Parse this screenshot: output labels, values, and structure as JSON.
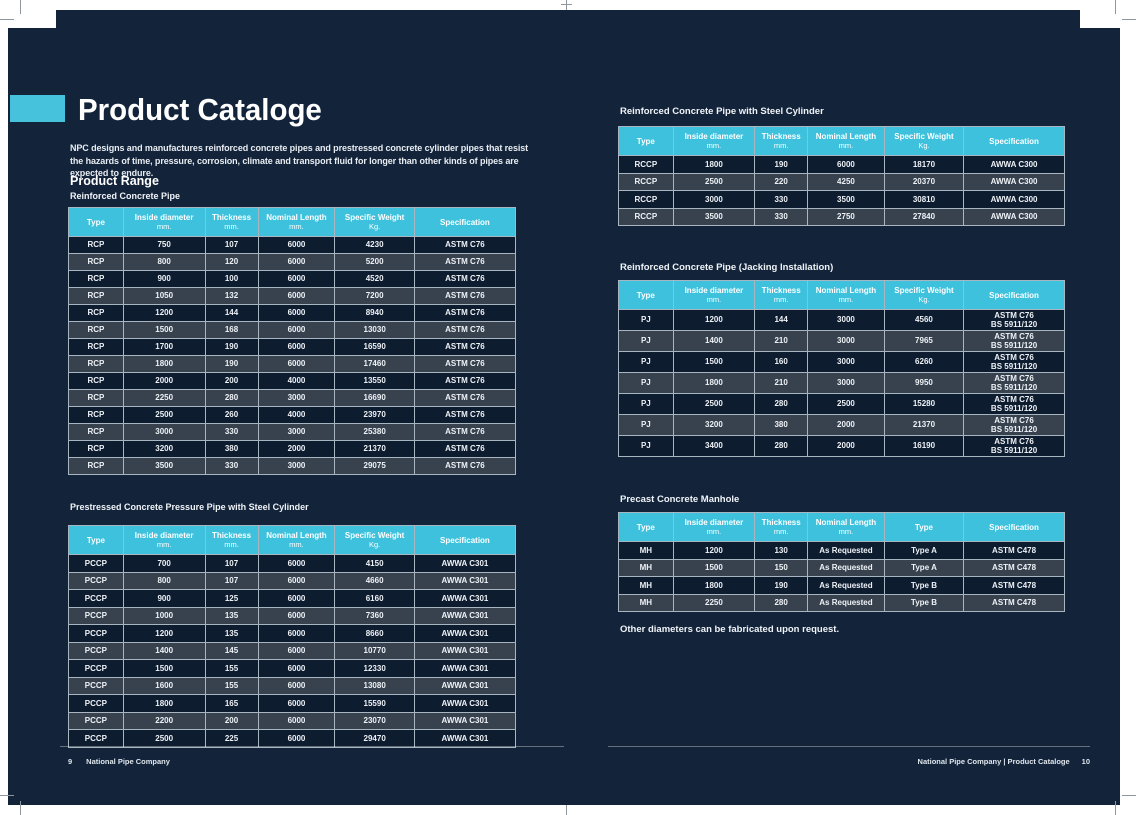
{
  "page": {
    "title": "Product Cataloge",
    "intro": "NPC designs and manufactures reinforced concrete pipes and prestressed concrete cylinder pipes that resist the hazards of time, pressure, corrosion, climate and transport fluid for longer than other kinds of pipes are expected to endure.",
    "section_heading": "Product Range",
    "note": "Other diameters can be fabricated upon request.",
    "colors": {
      "page_background": "#13233a",
      "accent_cyan": "#47c2dd",
      "table_header_cyan": "#3ec1dc",
      "row_dark": "#0e1c30",
      "row_light": "#38424f",
      "text_white": "#ffffff"
    }
  },
  "tables": [
    {
      "heading": "Reinforced Concrete Pipe",
      "columns": [
        {
          "label": "Type",
          "unit": ""
        },
        {
          "label": "Inside diameter",
          "unit": "mm."
        },
        {
          "label": "Thickness",
          "unit": "mm."
        },
        {
          "label": "Nominal Length",
          "unit": "mm."
        },
        {
          "label": "Specific Weight",
          "unit": "Kg."
        },
        {
          "label": "Specification",
          "unit": ""
        }
      ],
      "rows": [
        [
          "RCP",
          "750",
          "107",
          "6000",
          "4230",
          "ASTM C76"
        ],
        [
          "RCP",
          "800",
          "120",
          "6000",
          "5200",
          "ASTM C76"
        ],
        [
          "RCP",
          "900",
          "100",
          "6000",
          "4520",
          "ASTM C76"
        ],
        [
          "RCP",
          "1050",
          "132",
          "6000",
          "7200",
          "ASTM C76"
        ],
        [
          "RCP",
          "1200",
          "144",
          "6000",
          "8940",
          "ASTM C76"
        ],
        [
          "RCP",
          "1500",
          "168",
          "6000",
          "13030",
          "ASTM C76"
        ],
        [
          "RCP",
          "1700",
          "190",
          "6000",
          "16590",
          "ASTM C76"
        ],
        [
          "RCP",
          "1800",
          "190",
          "6000",
          "17460",
          "ASTM C76"
        ],
        [
          "RCP",
          "2000",
          "200",
          "4000",
          "13550",
          "ASTM C76"
        ],
        [
          "RCP",
          "2250",
          "280",
          "3000",
          "16690",
          "ASTM C76"
        ],
        [
          "RCP",
          "2500",
          "260",
          "4000",
          "23970",
          "ASTM C76"
        ],
        [
          "RCP",
          "3000",
          "330",
          "3000",
          "25380",
          "ASTM C76"
        ],
        [
          "RCP",
          "3200",
          "380",
          "2000",
          "21370",
          "ASTM C76"
        ],
        [
          "RCP",
          "3500",
          "330",
          "3000",
          "29075",
          "ASTM C76"
        ]
      ]
    },
    {
      "heading": "Prestressed Concrete Pressure Pipe with Steel Cylinder",
      "columns": [
        {
          "label": "Type",
          "unit": ""
        },
        {
          "label": "Inside diameter",
          "unit": "mm."
        },
        {
          "label": "Thickness",
          "unit": "mm."
        },
        {
          "label": "Nominal Length",
          "unit": "mm."
        },
        {
          "label": "Specific Weight",
          "unit": "Kg."
        },
        {
          "label": "Specification",
          "unit": ""
        }
      ],
      "rows": [
        [
          "PCCP",
          "700",
          "107",
          "6000",
          "4150",
          "AWWA C301"
        ],
        [
          "PCCP",
          "800",
          "107",
          "6000",
          "4660",
          "AWWA C301"
        ],
        [
          "PCCP",
          "900",
          "125",
          "6000",
          "6160",
          "AWWA C301"
        ],
        [
          "PCCP",
          "1000",
          "135",
          "6000",
          "7360",
          "AWWA C301"
        ],
        [
          "PCCP",
          "1200",
          "135",
          "6000",
          "8660",
          "AWWA C301"
        ],
        [
          "PCCP",
          "1400",
          "145",
          "6000",
          "10770",
          "AWWA C301"
        ],
        [
          "PCCP",
          "1500",
          "155",
          "6000",
          "12330",
          "AWWA C301"
        ],
        [
          "PCCP",
          "1600",
          "155",
          "6000",
          "13080",
          "AWWA C301"
        ],
        [
          "PCCP",
          "1800",
          "165",
          "6000",
          "15590",
          "AWWA C301"
        ],
        [
          "PCCP",
          "2200",
          "200",
          "6000",
          "23070",
          "AWWA C301"
        ],
        [
          "PCCP",
          "2500",
          "225",
          "6000",
          "29470",
          "AWWA C301"
        ]
      ]
    },
    {
      "heading": "Reinforced Concrete Pipe with Steel Cylinder",
      "columns": [
        {
          "label": "Type",
          "unit": ""
        },
        {
          "label": "Inside diameter",
          "unit": "mm."
        },
        {
          "label": "Thickness",
          "unit": "mm."
        },
        {
          "label": "Nominal Length",
          "unit": "mm."
        },
        {
          "label": "Specific Weight",
          "unit": "Kg."
        },
        {
          "label": "Specification",
          "unit": ""
        }
      ],
      "rows": [
        [
          "RCCP",
          "1800",
          "190",
          "6000",
          "18170",
          "AWWA C300"
        ],
        [
          "RCCP",
          "2500",
          "220",
          "4250",
          "20370",
          "AWWA C300"
        ],
        [
          "RCCP",
          "3000",
          "330",
          "3500",
          "30810",
          "AWWA C300"
        ],
        [
          "RCCP",
          "3500",
          "330",
          "2750",
          "27840",
          "AWWA C300"
        ]
      ]
    },
    {
      "heading": "Reinforced Concrete Pipe (Jacking Installation)",
      "columns": [
        {
          "label": "Type",
          "unit": ""
        },
        {
          "label": "Inside diameter",
          "unit": "mm."
        },
        {
          "label": "Thickness",
          "unit": "mm."
        },
        {
          "label": "Nominal Length",
          "unit": "mm."
        },
        {
          "label": "Specific Weight",
          "unit": "Kg."
        },
        {
          "label": "Specification",
          "unit": ""
        }
      ],
      "rows": [
        [
          "PJ",
          "1200",
          "144",
          "3000",
          "4560",
          "ASTM C76\nBS 5911/120"
        ],
        [
          "PJ",
          "1400",
          "210",
          "3000",
          "7965",
          "ASTM C76\nBS 5911/120"
        ],
        [
          "PJ",
          "1500",
          "160",
          "3000",
          "6260",
          "ASTM C76\nBS 5911/120"
        ],
        [
          "PJ",
          "1800",
          "210",
          "3000",
          "9950",
          "ASTM C76\nBS 5911/120"
        ],
        [
          "PJ",
          "2500",
          "280",
          "2500",
          "15280",
          "ASTM C76\nBS 5911/120"
        ],
        [
          "PJ",
          "3200",
          "380",
          "2000",
          "21370",
          "ASTM C76\nBS 5911/120"
        ],
        [
          "PJ",
          "3400",
          "280",
          "2000",
          "16190",
          "ASTM C76\nBS 5911/120"
        ]
      ]
    },
    {
      "heading": "Precast Concrete Manhole",
      "columns": [
        {
          "label": "Type",
          "unit": ""
        },
        {
          "label": "Inside diameter",
          "unit": "mm."
        },
        {
          "label": "Thickness",
          "unit": "mm."
        },
        {
          "label": "Nominal Length",
          "unit": "mm."
        },
        {
          "label": "Type",
          "unit": ""
        },
        {
          "label": "Specification",
          "unit": ""
        }
      ],
      "rows": [
        [
          "MH",
          "1200",
          "130",
          "As Requested",
          "Type A",
          "ASTM C478"
        ],
        [
          "MH",
          "1500",
          "150",
          "As Requested",
          "Type A",
          "ASTM C478"
        ],
        [
          "MH",
          "1800",
          "190",
          "As Requested",
          "Type B",
          "ASTM C478"
        ],
        [
          "MH",
          "2250",
          "280",
          "As Requested",
          "Type B",
          "ASTM C478"
        ]
      ]
    }
  ],
  "footer_left": {
    "page_number": "9",
    "text": "National Pipe Company"
  },
  "footer_right": {
    "text": "National Pipe Company | Product Cataloge",
    "page_number": "10"
  }
}
